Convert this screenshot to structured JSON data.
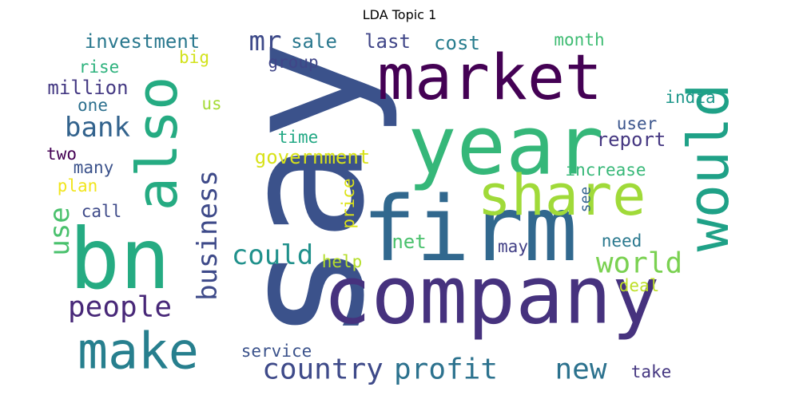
{
  "title": "LDA Topic 1",
  "palette": {
    "dark_purple": "#440154",
    "indigo": "#46327e",
    "blue": "#365c8d",
    "teal": "#277f8e",
    "green_teal": "#1fa187",
    "green": "#4ac16d",
    "lime": "#a0da39",
    "yellow": "#fde725"
  },
  "words": [
    {
      "text": "say",
      "color": "#3b528b"
    },
    {
      "text": "company",
      "color": "#46327e"
    },
    {
      "text": "firm",
      "color": "#31688e"
    },
    {
      "text": "year",
      "color": "#35b779"
    },
    {
      "text": "bn",
      "color": "#25ab82"
    },
    {
      "text": "market",
      "color": "#440154"
    },
    {
      "text": "share",
      "color": "#a0da39"
    },
    {
      "text": "also",
      "color": "#25ab82"
    },
    {
      "text": "would",
      "color": "#1fa187"
    },
    {
      "text": "make",
      "color": "#277f8e"
    },
    {
      "text": "people",
      "color": "#482878"
    },
    {
      "text": "world",
      "color": "#7ad151"
    },
    {
      "text": "country",
      "color": "#3e4a89"
    },
    {
      "text": "profit",
      "color": "#2c728e"
    },
    {
      "text": "new",
      "color": "#2c728e"
    },
    {
      "text": "business",
      "color": "#3e4a89"
    },
    {
      "text": "bank",
      "color": "#33638d"
    },
    {
      "text": "could",
      "color": "#21918c"
    },
    {
      "text": "mr",
      "color": "#3e4a89"
    },
    {
      "text": "use",
      "color": "#4ac16d"
    },
    {
      "text": "government",
      "color": "#d8e219"
    },
    {
      "text": "report",
      "color": "#453781"
    },
    {
      "text": "million",
      "color": "#443983"
    },
    {
      "text": "investment",
      "color": "#2a788e"
    },
    {
      "text": "sale",
      "color": "#2a788e"
    },
    {
      "text": "last",
      "color": "#404688"
    },
    {
      "text": "cost",
      "color": "#287d8e"
    },
    {
      "text": "month",
      "color": "#3fbc73"
    },
    {
      "text": "group",
      "color": "#404688"
    },
    {
      "text": "rise",
      "color": "#2db27d"
    },
    {
      "text": "big",
      "color": "#d2e21b"
    },
    {
      "text": "one",
      "color": "#2d708e"
    },
    {
      "text": "us",
      "color": "#a5db36"
    },
    {
      "text": "india",
      "color": "#1f988b"
    },
    {
      "text": "user",
      "color": "#3a548c"
    },
    {
      "text": "time",
      "color": "#22a884"
    },
    {
      "text": "two",
      "color": "#440154"
    },
    {
      "text": "many",
      "color": "#3b528b"
    },
    {
      "text": "increase",
      "color": "#37b878"
    },
    {
      "text": "plan",
      "color": "#f1e51d"
    },
    {
      "text": "call",
      "color": "#3e4a89"
    },
    {
      "text": "price",
      "color": "#dde318"
    },
    {
      "text": "see",
      "color": "#33638d"
    },
    {
      "text": "net",
      "color": "#4ac16d"
    },
    {
      "text": "need",
      "color": "#2a788e"
    },
    {
      "text": "may",
      "color": "#424086"
    },
    {
      "text": "help",
      "color": "#b5de2b"
    },
    {
      "text": "deal",
      "color": "#bddf26"
    },
    {
      "text": "service",
      "color": "#3b528b"
    },
    {
      "text": "take",
      "color": "#453781"
    }
  ]
}
